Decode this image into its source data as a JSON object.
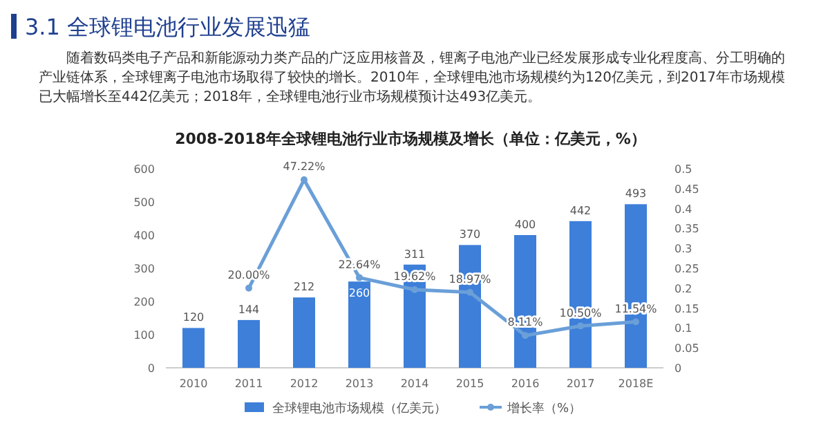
{
  "chart_data": {
    "type": "bar",
    "title": "2008-2018年全球锂电池行业市场规模及增长（单位：亿美元，%）",
    "annotations": [
      "3.1 全球锂电池行业发展迅猛",
      "随着数码类电子产品和新能源动力类产品的广泛应用核普及，锂离子电池产业已经发展形成专业化程度高、分工明确的产业链体系，全球锂离子电池市场取得了较快的增长。2010年，全球锂电池市场规模约为120亿美元，到2017年市场规模已大幅增长至442亿美元；2018年，全球锂电池行业市场规模预计达493亿美元。"
    ],
    "categories": [
      "2010",
      "2011",
      "2012",
      "2013",
      "2014",
      "2015",
      "2016",
      "2017",
      "2018E"
    ],
    "series": [
      {
        "name": "全球锂电池市场规模（亿美元）",
        "color": "#3d7fd9",
        "values": [
          120,
          144,
          212,
          260,
          311,
          370,
          400,
          442,
          493
        ],
        "value_labels": [
          "120",
          "144",
          "212",
          "260",
          "311",
          "370",
          "400",
          "442",
          "493"
        ]
      },
      {
        "type": "line",
        "name": "增长率（%）",
        "color": "#6a9fd8",
        "axis": "y2",
        "marker": "circle",
        "values": [
          null,
          0.2,
          0.4722,
          0.2264,
          0.1962,
          0.1897,
          0.0811,
          0.105,
          0.1154
        ],
        "value_labels": [
          null,
          "20.00%",
          "47.22%",
          "22.64%",
          "19.62%",
          "18.97%",
          "8.11%",
          "10.50%",
          "11.54%"
        ]
      }
    ],
    "ylim": [
      0,
      600
    ],
    "yticks": [
      0,
      100,
      200,
      300,
      400,
      500,
      600
    ],
    "y2lim": [
      0,
      0.5
    ],
    "y2ticks": [
      0,
      0.05,
      0.1,
      0.15,
      0.2,
      0.25,
      0.3,
      0.35,
      0.4,
      0.45,
      0.5
    ],
    "legend": "bottom"
  }
}
